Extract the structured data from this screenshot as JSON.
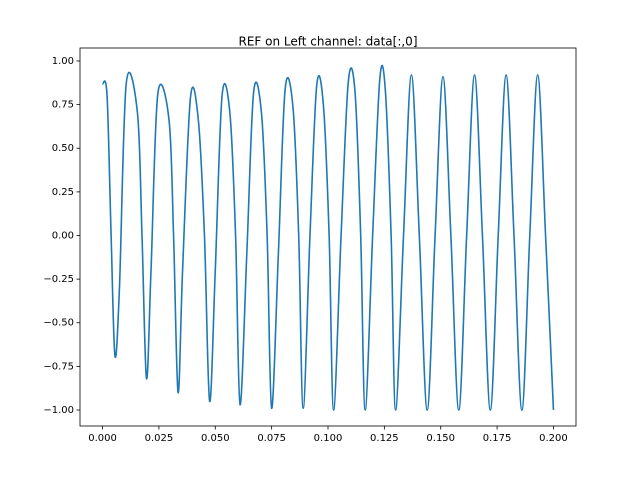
{
  "chart_data": {
    "type": "line",
    "title": "REF on Left channel: data[:,0]",
    "xlim": [
      -0.01,
      0.21
    ],
    "ylim": [
      -1.0917,
      1.0745
    ],
    "xticks": [
      {
        "value": 0,
        "label": "0.000"
      },
      {
        "value": 0.025,
        "label": "0.025"
      },
      {
        "value": 0.05,
        "label": "0.050"
      },
      {
        "value": 0.075,
        "label": "0.075"
      },
      {
        "value": 0.1,
        "label": "0.100"
      },
      {
        "value": 0.125,
        "label": "0.125"
      },
      {
        "value": 0.15,
        "label": "0.150"
      },
      {
        "value": 0.175,
        "label": "0.175"
      },
      {
        "value": 0.2,
        "label": "0.200"
      }
    ],
    "yticks": [
      {
        "value": -1,
        "label": "−1.00"
      },
      {
        "value": -0.75,
        "label": "−0.75"
      },
      {
        "value": -0.5,
        "label": "−0.50"
      },
      {
        "value": -0.25,
        "label": "−0.25"
      },
      {
        "value": 0,
        "label": "0.00"
      },
      {
        "value": 0.25,
        "label": "0.25"
      },
      {
        "value": 0.5,
        "label": "0.50"
      },
      {
        "value": 0.75,
        "label": "0.75"
      },
      {
        "value": 1,
        "label": "1.00"
      }
    ],
    "grid": false,
    "series": [
      {
        "color": "#1f77b4",
        "x": [
          0,
          0.002,
          0.0038,
          0.0055,
          0.0075,
          0.0105,
          0.0155,
          0.0175,
          0.0195,
          0.0215,
          0.0245,
          0.0295,
          0.0315,
          0.0335,
          0.0355,
          0.039,
          0.0425,
          0.0452,
          0.0475,
          0.05,
          0.053,
          0.0565,
          0.059,
          0.061,
          0.064,
          0.067,
          0.0705,
          0.073,
          0.075,
          0.078,
          0.081,
          0.0845,
          0.087,
          0.089,
          0.092,
          0.095,
          0.098,
          0.1005,
          0.1025,
          0.1058,
          0.109,
          0.112,
          0.1145,
          0.1165,
          0.1198,
          0.123,
          0.1255,
          0.128,
          0.13,
          0.1335,
          0.137,
          0.1405,
          0.144,
          0.1475,
          0.151,
          0.1545,
          0.158,
          0.1615,
          0.165,
          0.1685,
          0.172,
          0.1755,
          0.179,
          0.1825,
          0.186,
          0.1895,
          0.193,
          0.1965,
          0.2
        ],
        "values": [
          0.87,
          0.8,
          0.0,
          -0.69,
          -0.3,
          0.87,
          0.7,
          0.0,
          -0.82,
          -0.2,
          0.81,
          0.66,
          0.0,
          -0.9,
          -0.2,
          0.79,
          0.66,
          0.0,
          -0.95,
          -0.2,
          0.8,
          0.7,
          0.0,
          -0.97,
          -0.1,
          0.82,
          0.7,
          0.0,
          -0.99,
          -0.1,
          0.84,
          0.73,
          0.0,
          -0.99,
          0.0,
          0.86,
          0.74,
          0.0,
          -1.0,
          0.0,
          0.88,
          0.82,
          0.0,
          -1.0,
          0.0,
          0.9,
          0.82,
          0.0,
          -1.0,
          0.0,
          0.92,
          0.0,
          -1.0,
          0.0,
          0.91,
          0.0,
          -1.0,
          0.0,
          0.92,
          0.0,
          -1.0,
          0.0,
          0.92,
          0.0,
          -1.0,
          0.0,
          0.92,
          0.0,
          -1.0
        ]
      }
    ]
  }
}
